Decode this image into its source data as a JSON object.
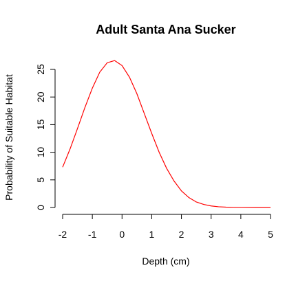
{
  "chart_data": {
    "type": "line",
    "title": "Adult Santa Ana Sucker",
    "xlabel": "Depth (cm)",
    "ylabel": "Probability of Suitable Habitat",
    "xlim": [
      -2,
      5
    ],
    "ylim": [
      0,
      25
    ],
    "x_ticks": [
      "-2",
      "-1",
      "0",
      "1",
      "2",
      "3",
      "4",
      "5"
    ],
    "y_ticks": [
      "0",
      "5",
      "10",
      "15",
      "20",
      "25"
    ],
    "grid": false,
    "series": [
      {
        "color": "#ff0000",
        "x": [
          -2.0,
          -1.75,
          -1.5,
          -1.25,
          -1.0,
          -0.75,
          -0.5,
          -0.25,
          0.0,
          0.25,
          0.5,
          0.75,
          1.0,
          1.25,
          1.5,
          1.75,
          2.0,
          2.25,
          2.5,
          2.75,
          3.0,
          3.25,
          3.5,
          3.75,
          4.0,
          4.5,
          5.0
        ],
        "y": [
          7.3,
          10.6,
          14.3,
          18.1,
          21.6,
          24.5,
          26.2,
          26.6,
          25.7,
          23.6,
          20.6,
          17.0,
          13.4,
          10.0,
          7.1,
          4.8,
          3.0,
          1.8,
          1.0,
          0.55,
          0.28,
          0.13,
          0.06,
          0.025,
          0.01,
          0.0,
          0.0
        ]
      }
    ]
  }
}
